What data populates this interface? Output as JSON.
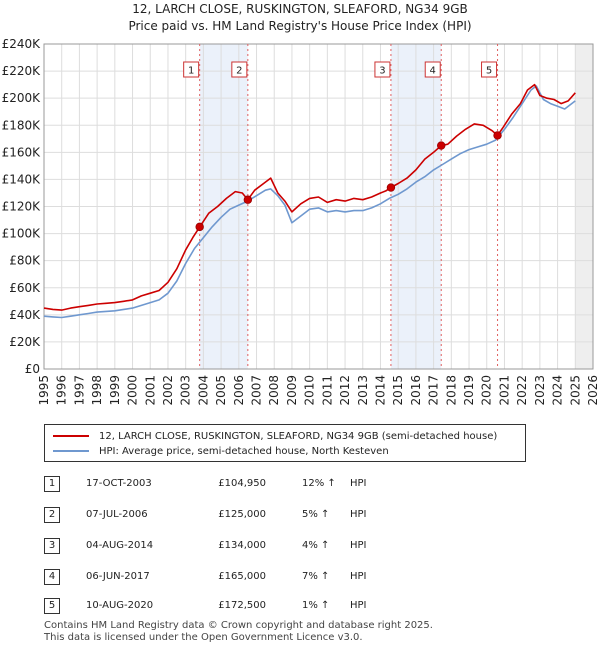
{
  "title_line1": "12, LARCH CLOSE, RUSKINGTON, SLEAFORD, NG34 9GB",
  "title_line2": "Price paid vs. HM Land Registry's House Price Index (HPI)",
  "chart_data": {
    "type": "line",
    "xlim": [
      1995,
      2026
    ],
    "ylim": [
      0,
      240000
    ],
    "y_ticks": [
      0,
      20000,
      40000,
      60000,
      80000,
      100000,
      120000,
      140000,
      160000,
      180000,
      200000,
      220000,
      240000
    ],
    "y_tick_labels": [
      "£0",
      "£20K",
      "£40K",
      "£60K",
      "£80K",
      "£100K",
      "£120K",
      "£140K",
      "£160K",
      "£180K",
      "£200K",
      "£220K",
      "£240K"
    ],
    "x_ticks": [
      1995,
      1996,
      1997,
      1998,
      1999,
      2000,
      2001,
      2002,
      2003,
      2004,
      2005,
      2006,
      2007,
      2008,
      2009,
      2010,
      2011,
      2012,
      2013,
      2014,
      2015,
      2016,
      2017,
      2018,
      2019,
      2020,
      2021,
      2022,
      2023,
      2024,
      2025,
      2026
    ],
    "x_tick_labels": [
      "1995",
      "1996",
      "1997",
      "1998",
      "1999",
      "2000",
      "2001",
      "2002",
      "2003",
      "2004",
      "2005",
      "2006",
      "2007",
      "2008",
      "2009",
      "2010",
      "2011",
      "2012",
      "2013",
      "2014",
      "2015",
      "2016",
      "2017",
      "2018",
      "2019",
      "2020",
      "2021",
      "2022",
      "2023",
      "2024",
      "2025",
      "2026"
    ],
    "grid": true,
    "series": [
      {
        "name": "12, LARCH CLOSE, RUSKINGTON, SLEAFORD, NG34 9GB (semi-detached house)",
        "color": "#cc0000",
        "x": [
          1995.0,
          1995.5,
          1996.0,
          1996.5,
          1997.0,
          1997.5,
          1998.0,
          1998.5,
          1999.0,
          1999.5,
          2000.0,
          2000.5,
          2001.0,
          2001.5,
          2002.0,
          2002.5,
          2003.0,
          2003.4,
          2003.79,
          2004.3,
          2004.8,
          2005.3,
          2005.8,
          2006.2,
          2006.51,
          2006.9,
          2007.4,
          2007.8,
          2008.2,
          2008.6,
          2009.0,
          2009.5,
          2010.0,
          2010.5,
          2011.0,
          2011.5,
          2012.0,
          2012.5,
          2013.0,
          2013.5,
          2014.0,
          2014.3,
          2014.59,
          2015.0,
          2015.5,
          2016.0,
          2016.5,
          2017.0,
          2017.43,
          2017.8,
          2018.3,
          2018.8,
          2019.3,
          2019.8,
          2020.3,
          2020.61,
          2020.9,
          2021.4,
          2021.9,
          2022.3,
          2022.7,
          2023.0,
          2023.4,
          2023.8,
          2024.2,
          2024.6,
          2025.0
        ],
        "y": [
          45000,
          44000,
          43500,
          45000,
          46000,
          47000,
          48000,
          48500,
          49000,
          50000,
          51000,
          54000,
          56000,
          58000,
          64000,
          74000,
          88000,
          97000,
          104950,
          115000,
          120000,
          126000,
          131000,
          130000,
          125000,
          132000,
          137000,
          141000,
          130000,
          124000,
          116000,
          122000,
          126000,
          127000,
          123000,
          125000,
          124000,
          126000,
          125000,
          127000,
          130000,
          131500,
          134000,
          137000,
          141000,
          147000,
          155000,
          160000,
          165000,
          166000,
          172000,
          177000,
          181000,
          180000,
          176000,
          172500,
          178000,
          188000,
          196000,
          206000,
          210000,
          202000,
          200000,
          199000,
          196000,
          198000,
          204000
        ]
      },
      {
        "name": "HPI: Average price, semi-detached house, North Kesteven",
        "color": "#6f98cf",
        "x": [
          1995.0,
          1995.5,
          1996.0,
          1996.5,
          1997.0,
          1997.5,
          1998.0,
          1998.5,
          1999.0,
          1999.5,
          2000.0,
          2000.5,
          2001.0,
          2001.5,
          2002.0,
          2002.5,
          2003.0,
          2003.5,
          2004.0,
          2004.5,
          2005.0,
          2005.5,
          2006.0,
          2006.5,
          2007.0,
          2007.5,
          2007.8,
          2008.2,
          2008.6,
          2009.0,
          2009.5,
          2010.0,
          2010.5,
          2011.0,
          2011.5,
          2012.0,
          2012.5,
          2013.0,
          2013.5,
          2014.0,
          2014.5,
          2015.0,
          2015.5,
          2016.0,
          2016.5,
          2017.0,
          2017.5,
          2018.0,
          2018.5,
          2019.0,
          2019.5,
          2020.0,
          2020.5,
          2021.0,
          2021.5,
          2022.0,
          2022.5,
          2022.8,
          2023.2,
          2023.6,
          2024.0,
          2024.4,
          2024.8,
          2025.0
        ],
        "y": [
          39000,
          38500,
          38000,
          39000,
          40000,
          41000,
          42000,
          42500,
          43000,
          44000,
          45000,
          47000,
          49000,
          51000,
          56000,
          65000,
          78000,
          89000,
          97000,
          105000,
          112000,
          118000,
          121000,
          124000,
          128000,
          132000,
          133000,
          128000,
          121000,
          108000,
          113000,
          118000,
          119000,
          116000,
          117000,
          116000,
          117000,
          117000,
          119000,
          122000,
          126000,
          129000,
          133000,
          138000,
          142000,
          147000,
          151000,
          155000,
          159000,
          162000,
          164000,
          166000,
          169000,
          177000,
          186000,
          196000,
          206000,
          209000,
          199000,
          196000,
          194000,
          192000,
          196000,
          198000
        ]
      }
    ],
    "sales": [
      {
        "n": "1",
        "x": 2003.79,
        "price": 104950
      },
      {
        "n": "2",
        "x": 2006.51,
        "price": 125000
      },
      {
        "n": "3",
        "x": 2014.59,
        "price": 134000
      },
      {
        "n": "4",
        "x": 2017.43,
        "price": 165000
      },
      {
        "n": "5",
        "x": 2020.61,
        "price": 172500
      }
    ],
    "marker_color": "#cc0000",
    "shade_color": "#dbe6f6",
    "vline_color": "#e06060"
  },
  "legend": {
    "property": "12, LARCH CLOSE, RUSKINGTON, SLEAFORD, NG34 9GB (semi-detached house)",
    "hpi": "HPI: Average price, semi-detached house, North Kesteven"
  },
  "table": [
    {
      "n": "1",
      "date": "17-OCT-2003",
      "price": "£104,950",
      "pct": "12% ↑",
      "hpi": "HPI"
    },
    {
      "n": "2",
      "date": "07-JUL-2006",
      "price": "£125,000",
      "pct": "5% ↑",
      "hpi": "HPI"
    },
    {
      "n": "3",
      "date": "04-AUG-2014",
      "price": "£134,000",
      "pct": "4% ↑",
      "hpi": "HPI"
    },
    {
      "n": "4",
      "date": "06-JUN-2017",
      "price": "£165,000",
      "pct": "7% ↑",
      "hpi": "HPI"
    },
    {
      "n": "5",
      "date": "10-AUG-2020",
      "price": "£172,500",
      "pct": "1% ↑",
      "hpi": "HPI"
    }
  ],
  "footer": {
    "line1": "Contains HM Land Registry data © Crown copyright and database right 2025.",
    "line2": "This data is licensed under the Open Government Licence v3.0."
  }
}
